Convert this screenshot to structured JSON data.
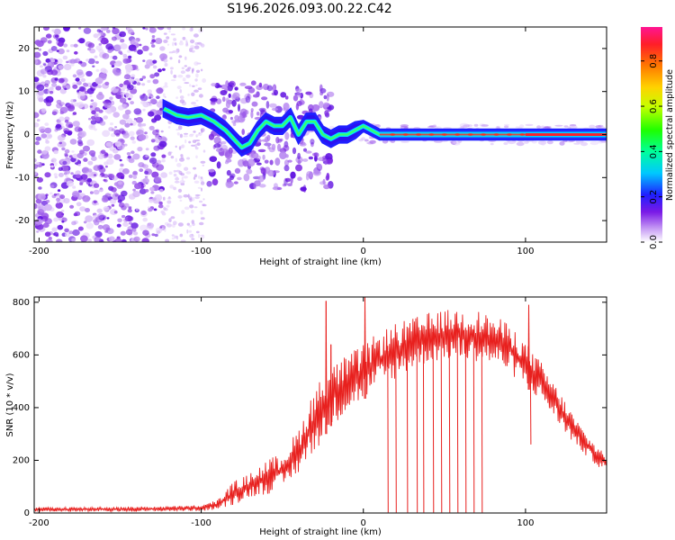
{
  "title": "S196.2026.093.00.22.C42",
  "chart_data": [
    {
      "type": "heatmap",
      "title": "S196.2026.093.00.22.C42",
      "xlabel": "Height of straight line (km)",
      "ylabel": "Frequency (Hz)",
      "xlim": [
        -203,
        150
      ],
      "ylim": [
        -25,
        25
      ],
      "xticks": [
        -200,
        -100,
        0,
        100
      ],
      "yticks": [
        -20,
        -10,
        0,
        10,
        20
      ],
      "ridge": {
        "x": [
          -123,
          -115,
          -108,
          -100,
          -92,
          -85,
          -80,
          -75,
          -70,
          -65,
          -60,
          -55,
          -50,
          -45,
          -40,
          -35,
          -30,
          -25,
          -20,
          -15,
          -10,
          -5,
          0,
          5,
          10,
          20,
          40,
          60,
          80,
          100,
          120,
          150
        ],
        "freq": [
          6,
          4.5,
          4,
          4.5,
          3,
          1,
          -1,
          -3,
          -2,
          1,
          3,
          2,
          2,
          4,
          0,
          3,
          3,
          0,
          -1,
          0,
          0,
          1,
          2,
          1,
          0,
          0,
          0,
          0,
          0,
          0,
          0,
          0
        ]
      },
      "colorbar": {
        "label": "Normalized spectral amplitude",
        "range": [
          0.0,
          0.95
        ],
        "ticks": [
          0.0,
          0.2,
          0.4,
          0.6,
          0.8
        ],
        "tick_labels": [
          "0.0",
          "0.2",
          "0.4",
          "0.6",
          "0.8"
        ]
      }
    },
    {
      "type": "line",
      "xlabel": "Height of straight line (km)",
      "ylabel": "SNR (10 * v/v)",
      "xlim": [
        -203,
        150
      ],
      "ylim": [
        0,
        820
      ],
      "xticks": [
        -200,
        -100,
        0,
        100
      ],
      "yticks": [
        0,
        200,
        400,
        600,
        800
      ],
      "series": [
        {
          "name": "SNR",
          "color": "#e8201e",
          "envelope": {
            "x": [
              -203,
              -150,
              -120,
              -100,
              -90,
              -80,
              -70,
              -60,
              -50,
              -40,
              -30,
              -20,
              -10,
              0,
              10,
              20,
              30,
              40,
              50,
              60,
              70,
              80,
              90,
              100,
              110,
              120,
              130,
              140,
              150
            ],
            "low": [
              5,
              5,
              6,
              8,
              12,
              30,
              60,
              70,
              90,
              150,
              230,
              330,
              380,
              430,
              470,
              510,
              545,
              570,
              580,
              580,
              575,
              560,
              530,
              480,
              420,
              340,
              260,
              200,
              150
            ],
            "high": [
              22,
              24,
              26,
              30,
              50,
              120,
              150,
              200,
              230,
              320,
              480,
              560,
              600,
              640,
              690,
              720,
              740,
              760,
              770,
              780,
              770,
              750,
              720,
              650,
              570,
              470,
              370,
              280,
              230
            ]
          },
          "spikes": [
            {
              "x": -23,
              "y": 805
            },
            {
              "x": 1,
              "y": 820
            },
            {
              "x": -20,
              "y": 640
            },
            {
              "x": 102,
              "y": 790
            }
          ],
          "drops": [
            15,
            20,
            27,
            33,
            37,
            43,
            48,
            53,
            58,
            63,
            68,
            73
          ]
        }
      ]
    }
  ]
}
